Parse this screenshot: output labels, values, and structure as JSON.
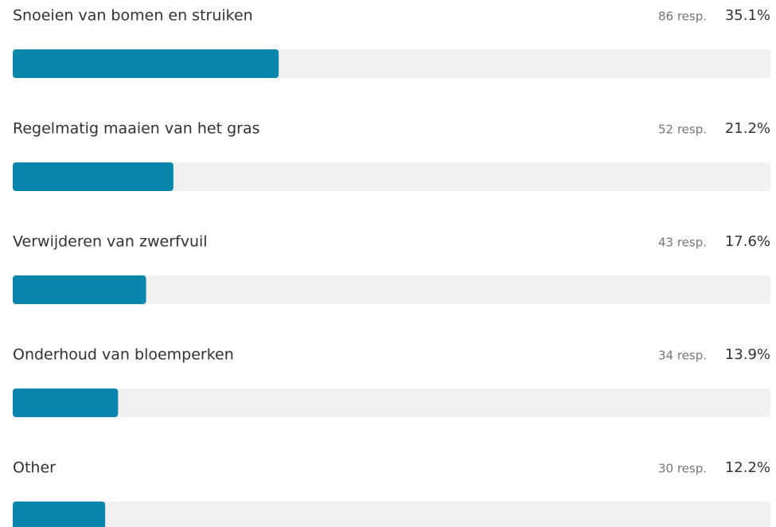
{
  "chart_data": {
    "type": "bar",
    "orientation": "horizontal",
    "categories": [
      "Snoeien van bomen en struiken",
      "Regelmatig maaien van het gras",
      "Verwijderen van zwerfvuil",
      "Onderhoud van bloemperken",
      "Other"
    ],
    "values": [
      35.1,
      21.2,
      17.6,
      13.9,
      12.2
    ],
    "value_labels": [
      "35.1%",
      "21.2%",
      "17.6%",
      "13.9%",
      "12.2%"
    ],
    "responses": [
      {
        "value": 86,
        "label": "86 resp."
      },
      {
        "value": 52,
        "label": "52 resp."
      },
      {
        "value": 43,
        "label": "43 resp."
      },
      {
        "value": 34,
        "label": "34 resp."
      },
      {
        "value": 30,
        "label": "30 resp."
      }
    ],
    "color": "#0a86ad",
    "track_color": "#f1f1f1",
    "xlim": [
      0,
      100
    ]
  }
}
